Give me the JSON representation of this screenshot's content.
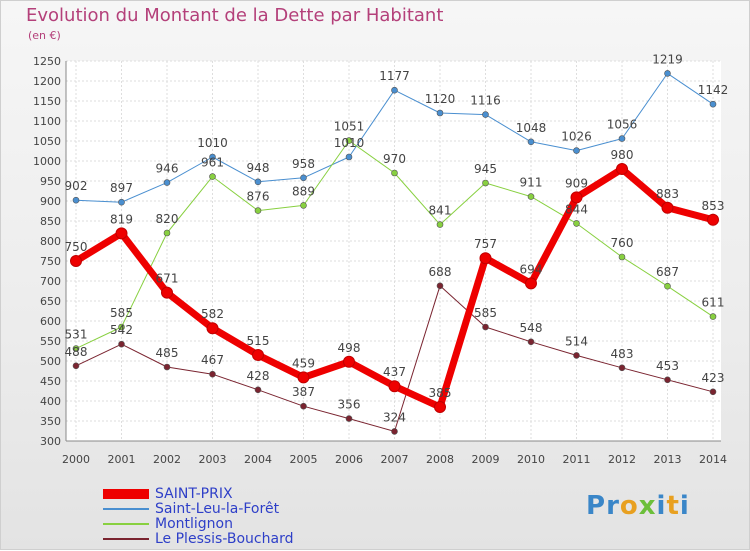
{
  "title": "Evolution du Montant de la Dette par Habitant",
  "subtitle": "(en €)",
  "brand": {
    "logo_letters": [
      "P",
      "r",
      "o",
      "x",
      "i",
      "t",
      "i"
    ],
    "logo_colors": [
      "#3a86c8",
      "#3a86c8",
      "#e8a020",
      "#6cbf3a",
      "#3a86c8",
      "#e8a020",
      "#3a86c8"
    ]
  },
  "chart_data": {
    "type": "line",
    "x": [
      "2000",
      "2001",
      "2002",
      "2003",
      "2004",
      "2005",
      "2006",
      "2007",
      "2008",
      "2009",
      "2010",
      "2011",
      "2012",
      "2013",
      "2014"
    ],
    "ylim": [
      300,
      1250
    ],
    "yticks": [
      300,
      350,
      400,
      450,
      500,
      550,
      600,
      650,
      700,
      750,
      800,
      850,
      900,
      950,
      1000,
      1050,
      1100,
      1150,
      1200,
      1250
    ],
    "grid": true,
    "legend_position": "bottom-left",
    "series": [
      {
        "name": "Saint-Leu-la-Forêt",
        "color": "#4a8fd0",
        "width": 1,
        "values": [
          902,
          897,
          946,
          1010,
          948,
          958,
          1010,
          1177,
          1120,
          1116,
          1048,
          1026,
          1056,
          1219,
          1142
        ],
        "labels": [
          "902",
          "897",
          "946",
          "1010",
          "948",
          "958",
          "1010",
          "1177",
          "1120",
          "1116",
          "1048",
          "1026",
          "1056",
          "1219",
          "1142"
        ]
      },
      {
        "name": "Montlignon",
        "color": "#88d040",
        "width": 1,
        "values": [
          531,
          585,
          820,
          961,
          876,
          889,
          1051,
          970,
          841,
          945,
          911,
          844,
          760,
          687,
          611
        ],
        "labels": [
          "531",
          "585",
          "820",
          "961",
          "876",
          "889",
          "1051",
          "970",
          "841",
          "945",
          "911",
          "844",
          "760",
          "687",
          "611"
        ]
      },
      {
        "name": "Le Plessis-Bouchard",
        "color": "#7a2430",
        "width": 1,
        "values": [
          488,
          542,
          485,
          467,
          428,
          387,
          356,
          324,
          688,
          585,
          548,
          514,
          483,
          453,
          423
        ],
        "labels": [
          "488",
          "542",
          "485",
          "467",
          "428",
          "387",
          "356",
          "324",
          "688",
          "585",
          "548",
          "514",
          "483",
          "453",
          "423"
        ]
      },
      {
        "name": "SAINT-PRIX",
        "color": "#ee0000",
        "width": 7,
        "values": [
          750,
          819,
          671,
          582,
          515,
          459,
          498,
          437,
          385,
          757,
          694,
          909,
          980,
          883,
          853
        ],
        "labels": [
          "750",
          "819",
          "671",
          "582",
          "515",
          "459",
          "498",
          "437",
          "385",
          "757",
          "694",
          "909",
          "980",
          "883",
          "853"
        ]
      }
    ],
    "legend": [
      "SAINT-PRIX",
      "Saint-Leu-la-Forêt",
      "Montlignon",
      "Le Plessis-Bouchard"
    ]
  }
}
